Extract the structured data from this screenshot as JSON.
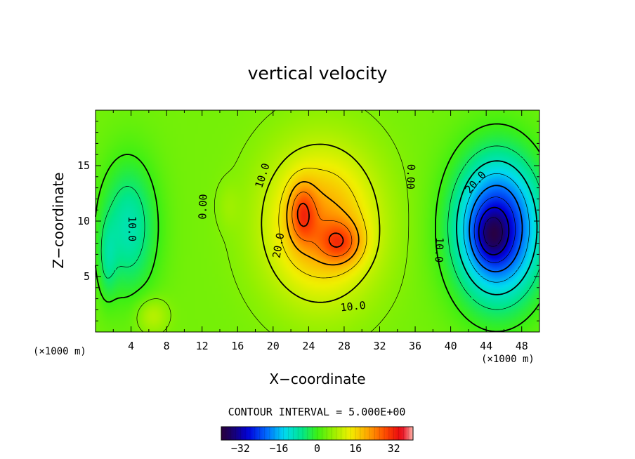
{
  "chart_data": {
    "type": "heatmap",
    "title": "vertical velocity",
    "xlabel": "X−coordinate",
    "ylabel": "Z−coordinate",
    "x_unit": "(×1000 m)",
    "y_unit": "(×1000 m)",
    "xlim": [
      0,
      50
    ],
    "ylim": [
      0,
      20
    ],
    "x_ticks": [
      4,
      8,
      12,
      16,
      20,
      24,
      28,
      32,
      36,
      40,
      44,
      48
    ],
    "y_ticks": [
      5,
      10,
      15
    ],
    "contour_interval_text": "CONTOUR INTERVAL = 5.000E+00",
    "contour_interval": 5,
    "colorbar": {
      "range": [
        -40,
        40
      ],
      "ticks": [
        -32,
        -16,
        0,
        16,
        32
      ],
      "tick_labels": [
        "−32",
        "−16",
        "0",
        "16",
        "32"
      ]
    },
    "contour_labels": [
      {
        "text": "0.00",
        "x": 12.1,
        "y": 11.3,
        "angle": -88
      },
      {
        "text": "0.00",
        "x": 35.5,
        "y": 14.0,
        "angle": 92
      },
      {
        "text": "10.0",
        "x": 18.8,
        "y": 14.1,
        "angle": -72
      },
      {
        "text": "20.0",
        "x": 20.6,
        "y": 7.8,
        "angle": -80
      },
      {
        "text": "10.0",
        "x": 29.0,
        "y": 2.3,
        "angle": -6
      },
      {
        "text": "20.0",
        "x": 42.8,
        "y": 13.5,
        "angle": -48
      },
      {
        "text": "10.0",
        "x": 38.7,
        "y": 7.4,
        "angle": 92
      },
      {
        "text": "10.0",
        "x": 4.1,
        "y": 9.3,
        "angle": 90
      }
    ],
    "features": [
      {
        "sign": "positive",
        "x": 23.2,
        "y": 10.8,
        "peak": 34
      },
      {
        "sign": "positive",
        "x": 27.5,
        "y": 8.1,
        "peak": 33
      },
      {
        "sign": "negative",
        "x": 44.8,
        "y": 9.2,
        "peak": -36
      },
      {
        "sign": "negative",
        "x": 3.6,
        "y": 9.5,
        "peak": -12
      },
      {
        "sign": "positive",
        "x": 6.0,
        "y": 1.8,
        "peak": 6
      }
    ]
  }
}
